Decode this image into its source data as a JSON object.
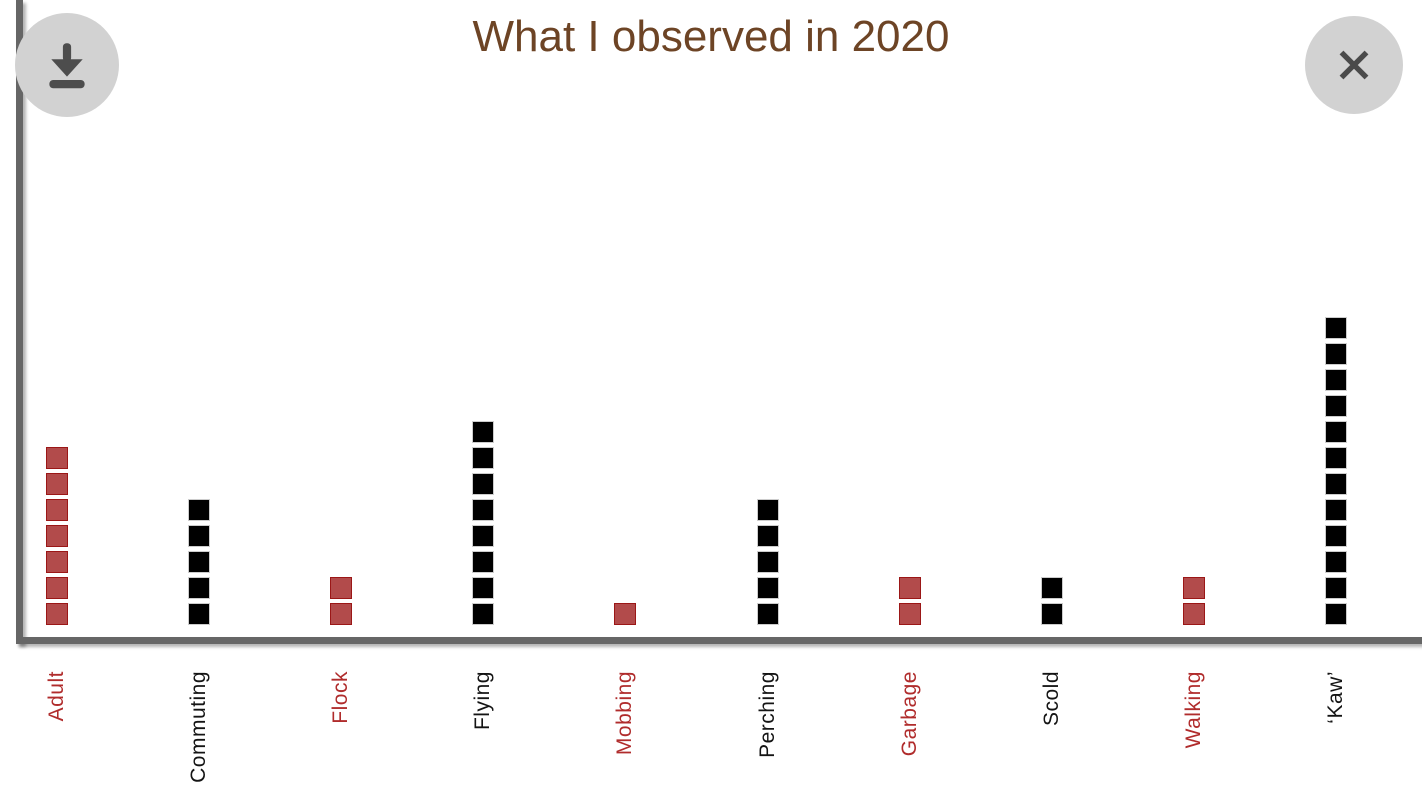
{
  "header": {
    "title": "What I observed in 2020",
    "download_button_label": "download chart",
    "close_button_label": "close"
  },
  "chart_data": {
    "type": "bar",
    "variant": "unit-square-pictogram",
    "title": "What I observed in 2020",
    "xlabel": "",
    "ylabel": "",
    "ylim": [
      0,
      12
    ],
    "grid": false,
    "legend": null,
    "categories": [
      "Adult",
      "Commuting",
      "Flock",
      "Flying",
      "Mobbing",
      "Perching",
      "Garbage",
      "Scold",
      "Walking",
      "‘Kaw’"
    ],
    "values": [
      7,
      5,
      2,
      8,
      1,
      5,
      2,
      2,
      2,
      12
    ],
    "unit_per_square": 1,
    "colors": [
      "red",
      "black",
      "red",
      "black",
      "red",
      "black",
      "red",
      "black",
      "red",
      "black"
    ],
    "palette": {
      "red_fill": "#b24b4b",
      "red_border": "#9b1717",
      "black_fill": "#000000",
      "black_border": "#cccccc",
      "red_label": "#b02c2c",
      "black_label": "#141414",
      "title_color": "#6d4425",
      "axis_color": "#666666",
      "button_bg": "#d2d2d2",
      "icon_color": "#4d4d4d"
    }
  }
}
